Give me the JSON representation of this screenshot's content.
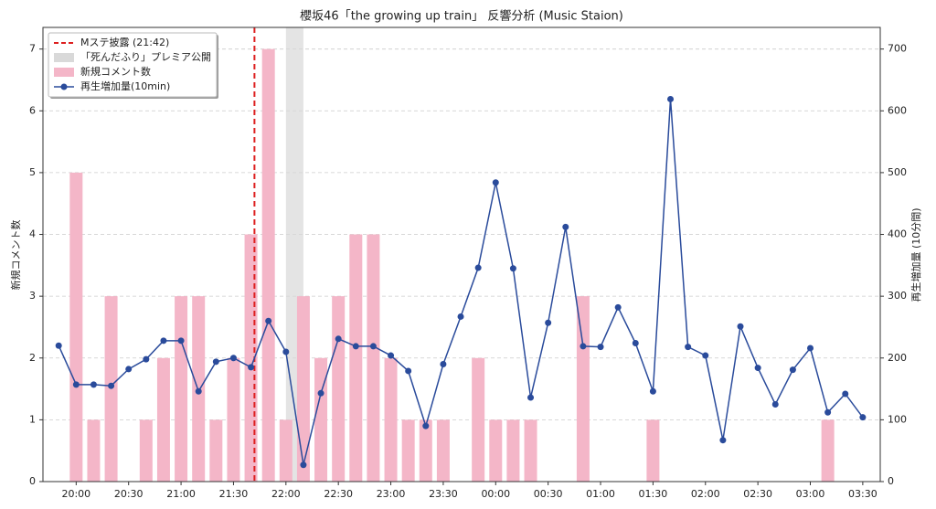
{
  "chart_data": {
    "type": "bar_line",
    "title": "櫻坂46「the growing up train」 反響分析 (Music Staion)",
    "ylabel": "新規コメント数",
    "y2label": "再生増加量 (10分間)",
    "x": [
      "19:50",
      "20:00",
      "20:10",
      "20:20",
      "20:30",
      "20:40",
      "20:50",
      "21:00",
      "21:10",
      "21:20",
      "21:30",
      "21:40",
      "21:50",
      "22:00",
      "22:10",
      "22:20",
      "22:30",
      "22:40",
      "22:50",
      "23:00",
      "23:10",
      "23:20",
      "23:30",
      "23:40",
      "23:50",
      "00:00",
      "00:10",
      "00:20",
      "00:30",
      "00:40",
      "00:50",
      "01:00",
      "01:10",
      "01:20",
      "01:30",
      "01:40",
      "01:50",
      "02:00",
      "02:10",
      "02:20",
      "02:30",
      "02:40",
      "02:50",
      "03:00",
      "03:10",
      "03:20",
      "03:30"
    ],
    "series": [
      {
        "name": "新規コメント数",
        "type": "bar",
        "color": "#f4b6c8",
        "values": [
          0,
          5,
          1,
          3,
          0,
          1,
          2,
          3,
          3,
          1,
          2,
          4,
          7,
          1,
          3,
          2,
          3,
          4,
          4,
          2,
          1,
          1,
          1,
          0,
          2,
          1,
          1,
          1,
          0,
          0,
          3,
          0,
          0,
          0,
          1,
          0,
          0,
          0,
          0,
          0,
          0,
          0,
          0,
          0,
          1,
          0,
          0
        ]
      },
      {
        "name": "再生増加量(10min)",
        "type": "line",
        "axis": "y2",
        "color": "#2a4b9b",
        "values": [
          220,
          157,
          157,
          155,
          182,
          198,
          228,
          228,
          146,
          194,
          200,
          185,
          260,
          210,
          27,
          143,
          231,
          219,
          219,
          204,
          179,
          90,
          190,
          267,
          346,
          484,
          345,
          136,
          257,
          412,
          219,
          218,
          282,
          224,
          146,
          619,
          218,
          204,
          67,
          251,
          184,
          125,
          181,
          216,
          112,
          142,
          104
        ]
      }
    ],
    "vline": {
      "label": "Mステ披露 (21:42)",
      "x": "21:42",
      "color": "#dd1f1f"
    },
    "span": {
      "label": "「死んだふり」プレミア公開",
      "x": [
        "22:00",
        "22:10"
      ],
      "color": "#d9d9d9"
    },
    "xlim": [
      "19:41",
      "03:40"
    ],
    "xticks": [
      "20:00",
      "20:30",
      "21:00",
      "21:30",
      "22:00",
      "22:30",
      "23:00",
      "23:30",
      "00:00",
      "00:30",
      "01:00",
      "01:30",
      "02:00",
      "02:30",
      "03:00",
      "03:30"
    ],
    "ylim": [
      0,
      7.35
    ],
    "yticks": [
      0,
      1,
      2,
      3,
      4,
      5,
      6,
      7
    ],
    "y2lim": [
      0,
      735
    ],
    "y2ticks": [
      0,
      100,
      200,
      300,
      400,
      500,
      600,
      700
    ],
    "grid": true,
    "legend": "upper left"
  }
}
